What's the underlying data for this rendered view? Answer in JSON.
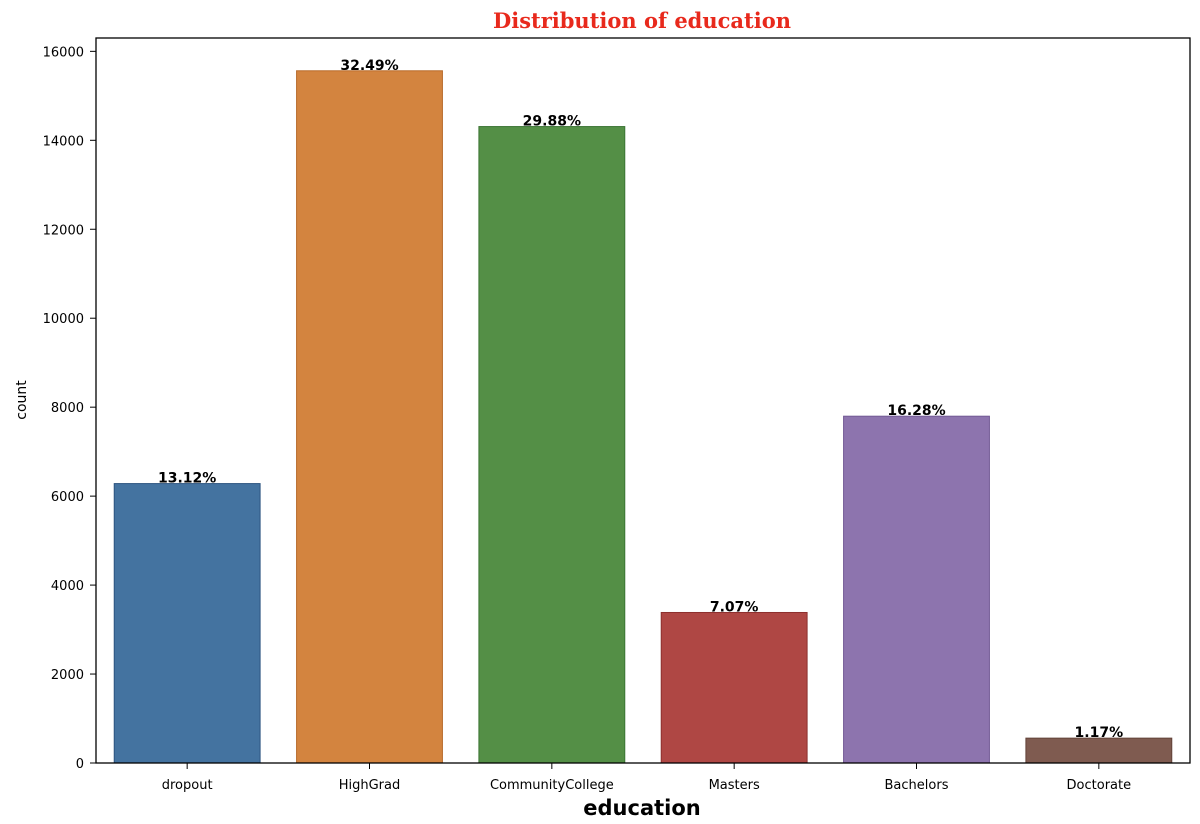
{
  "chart_data": {
    "type": "bar",
    "title": "Distribution of education",
    "title_color": "#e8291c",
    "xlabel": "education",
    "ylabel": "count",
    "categories": [
      "dropout",
      "HighGrad",
      "CommunityCollege",
      "Masters",
      "Bachelors",
      "Doctorate"
    ],
    "values": [
      6282,
      15563,
      14309,
      3384,
      7797,
      559
    ],
    "data_labels": [
      "13.12%",
      "32.49%",
      "29.88%",
      "7.07%",
      "16.28%",
      "1.17%"
    ],
    "colors": [
      "#4473a0",
      "#d3843f",
      "#548f46",
      "#af4744",
      "#8d74ae",
      "#7f5b50"
    ],
    "edge_colors": [
      "#2c5480",
      "#b86a2a",
      "#3b7534",
      "#8d302e",
      "#735a95",
      "#624238"
    ],
    "yticks": [
      0,
      2000,
      4000,
      6000,
      8000,
      10000,
      12000,
      14000,
      16000
    ],
    "ylim": [
      0,
      16300
    ],
    "grid": false,
    "legend": "none"
  }
}
